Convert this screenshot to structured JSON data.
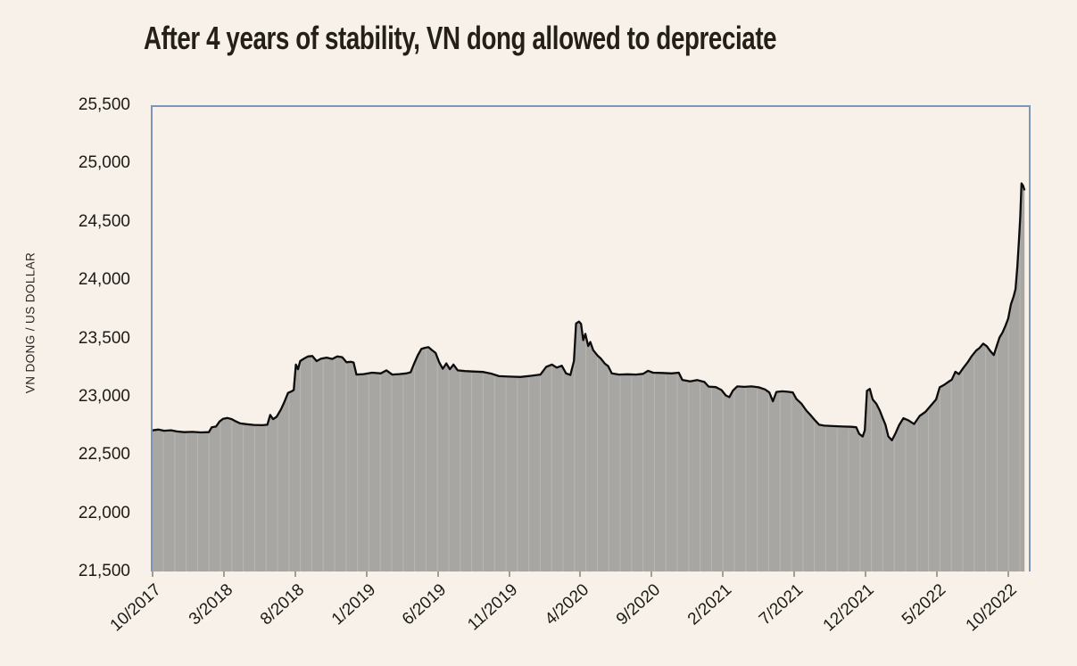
{
  "title": {
    "text": "After 4 years of stability, VN dong allowed to depreciate"
  },
  "y_axis": {
    "title": "VN DONG / US DOLLAR",
    "tick_labels": [
      "25,500",
      "25,000",
      "24,500",
      "24,000",
      "23,500",
      "23,000",
      "22,500",
      "22,000",
      "21,500"
    ]
  },
  "x_axis": {
    "tick_labels": [
      "10/2017",
      "3/2018",
      "8/2018",
      "1/2019",
      "6/2019",
      "11/2019",
      "4/2020",
      "9/2020",
      "2/2021",
      "7/2021",
      "12/2021",
      "5/2022",
      "10/2022"
    ]
  },
  "chart_data": {
    "type": "area",
    "title": "After 4 years of stability, VN dong allowed to depreciate",
    "ylabel": "VN DONG / US DOLLAR",
    "ylim": [
      21500,
      25500
    ],
    "y_tick_step": 500,
    "grid": "off",
    "legend": "none",
    "x_unit": "months since 10/2017",
    "x_domain_months": [
      0,
      61.45
    ],
    "x_tick_positions": [
      0,
      5,
      10,
      15,
      20,
      25,
      30,
      35,
      40,
      45,
      50,
      55,
      60
    ],
    "x_tick_labels": [
      "10/2017",
      "3/2018",
      "8/2018",
      "1/2019",
      "6/2019",
      "11/2019",
      "4/2020",
      "9/2020",
      "2/2021",
      "7/2021",
      "12/2021",
      "5/2022",
      "10/2022"
    ],
    "series": [
      {
        "name": "VN dong per US dollar",
        "points": [
          [
            0,
            22715
          ],
          [
            0.4,
            22722
          ],
          [
            0.8,
            22712
          ],
          [
            1.3,
            22716
          ],
          [
            1.7,
            22706
          ],
          [
            2.2,
            22700
          ],
          [
            2.8,
            22702
          ],
          [
            3.4,
            22698
          ],
          [
            3.95,
            22700
          ],
          [
            4.15,
            22742
          ],
          [
            4.45,
            22748
          ],
          [
            4.7,
            22792
          ],
          [
            4.95,
            22815
          ],
          [
            5.25,
            22822
          ],
          [
            5.55,
            22812
          ],
          [
            5.85,
            22792
          ],
          [
            6.15,
            22775
          ],
          [
            6.6,
            22768
          ],
          [
            7.1,
            22762
          ],
          [
            7.7,
            22760
          ],
          [
            8.05,
            22764
          ],
          [
            8.25,
            22848
          ],
          [
            8.45,
            22812
          ],
          [
            8.7,
            22832
          ],
          [
            9.0,
            22895
          ],
          [
            9.25,
            22962
          ],
          [
            9.5,
            23038
          ],
          [
            9.75,
            23052
          ],
          [
            9.9,
            23062
          ],
          [
            10.05,
            23282
          ],
          [
            10.2,
            23242
          ],
          [
            10.35,
            23312
          ],
          [
            10.6,
            23332
          ],
          [
            10.9,
            23352
          ],
          [
            11.2,
            23356
          ],
          [
            11.5,
            23312
          ],
          [
            11.8,
            23332
          ],
          [
            12.2,
            23342
          ],
          [
            12.6,
            23330
          ],
          [
            12.95,
            23352
          ],
          [
            13.3,
            23346
          ],
          [
            13.6,
            23302
          ],
          [
            13.9,
            23306
          ],
          [
            14.1,
            23300
          ],
          [
            14.3,
            23196
          ],
          [
            14.8,
            23200
          ],
          [
            15.4,
            23212
          ],
          [
            16.0,
            23206
          ],
          [
            16.4,
            23232
          ],
          [
            16.8,
            23196
          ],
          [
            17.3,
            23200
          ],
          [
            17.8,
            23206
          ],
          [
            18.1,
            23216
          ],
          [
            18.35,
            23292
          ],
          [
            18.6,
            23362
          ],
          [
            18.85,
            23416
          ],
          [
            19.1,
            23426
          ],
          [
            19.35,
            23432
          ],
          [
            19.6,
            23406
          ],
          [
            19.85,
            23382
          ],
          [
            20.1,
            23302
          ],
          [
            20.35,
            23246
          ],
          [
            20.6,
            23292
          ],
          [
            20.85,
            23242
          ],
          [
            21.1,
            23282
          ],
          [
            21.4,
            23232
          ],
          [
            21.9,
            23226
          ],
          [
            22.5,
            23222
          ],
          [
            23.2,
            23218
          ],
          [
            23.8,
            23202
          ],
          [
            24.3,
            23182
          ],
          [
            25.0,
            23178
          ],
          [
            25.8,
            23175
          ],
          [
            26.6,
            23186
          ],
          [
            27.2,
            23196
          ],
          [
            27.6,
            23262
          ],
          [
            28.0,
            23282
          ],
          [
            28.35,
            23256
          ],
          [
            28.7,
            23272
          ],
          [
            29.0,
            23206
          ],
          [
            29.3,
            23192
          ],
          [
            29.55,
            23312
          ],
          [
            29.7,
            23636
          ],
          [
            29.9,
            23652
          ],
          [
            30.05,
            23632
          ],
          [
            30.2,
            23492
          ],
          [
            30.35,
            23546
          ],
          [
            30.55,
            23442
          ],
          [
            30.7,
            23476
          ],
          [
            30.9,
            23406
          ],
          [
            31.2,
            23360
          ],
          [
            31.45,
            23332
          ],
          [
            31.7,
            23292
          ],
          [
            31.95,
            23268
          ],
          [
            32.2,
            23206
          ],
          [
            32.7,
            23196
          ],
          [
            33.3,
            23198
          ],
          [
            33.9,
            23196
          ],
          [
            34.4,
            23202
          ],
          [
            34.75,
            23228
          ],
          [
            35.1,
            23212
          ],
          [
            35.7,
            23210
          ],
          [
            36.4,
            23206
          ],
          [
            36.9,
            23212
          ],
          [
            37.15,
            23150
          ],
          [
            37.7,
            23138
          ],
          [
            38.2,
            23148
          ],
          [
            38.7,
            23132
          ],
          [
            39.0,
            23092
          ],
          [
            39.5,
            23088
          ],
          [
            39.9,
            23062
          ],
          [
            40.2,
            23016
          ],
          [
            40.45,
            23002
          ],
          [
            40.7,
            23058
          ],
          [
            41.0,
            23094
          ],
          [
            41.5,
            23090
          ],
          [
            42.0,
            23094
          ],
          [
            42.5,
            23086
          ],
          [
            42.95,
            23068
          ],
          [
            43.25,
            23042
          ],
          [
            43.5,
            22966
          ],
          [
            43.75,
            23046
          ],
          [
            44.15,
            23052
          ],
          [
            44.55,
            23048
          ],
          [
            44.9,
            23042
          ],
          [
            45.15,
            22986
          ],
          [
            45.5,
            22946
          ],
          [
            45.85,
            22886
          ],
          [
            46.15,
            22846
          ],
          [
            46.5,
            22796
          ],
          [
            46.75,
            22764
          ],
          [
            47.1,
            22756
          ],
          [
            47.7,
            22752
          ],
          [
            48.4,
            22748
          ],
          [
            49.0,
            22746
          ],
          [
            49.35,
            22742
          ],
          [
            49.55,
            22686
          ],
          [
            49.8,
            22662
          ],
          [
            49.95,
            22716
          ],
          [
            50.1,
            23056
          ],
          [
            50.3,
            23072
          ],
          [
            50.5,
            22982
          ],
          [
            50.75,
            22946
          ],
          [
            51.0,
            22886
          ],
          [
            51.2,
            22822
          ],
          [
            51.4,
            22762
          ],
          [
            51.6,
            22662
          ],
          [
            51.85,
            22630
          ],
          [
            52.1,
            22690
          ],
          [
            52.35,
            22760
          ],
          [
            52.65,
            22820
          ],
          [
            53.0,
            22802
          ],
          [
            53.4,
            22770
          ],
          [
            53.8,
            22840
          ],
          [
            54.2,
            22874
          ],
          [
            54.6,
            22932
          ],
          [
            54.95,
            22982
          ],
          [
            55.2,
            23086
          ],
          [
            55.5,
            23106
          ],
          [
            55.8,
            23132
          ],
          [
            56.05,
            23152
          ],
          [
            56.3,
            23220
          ],
          [
            56.55,
            23200
          ],
          [
            56.85,
            23252
          ],
          [
            57.15,
            23300
          ],
          [
            57.45,
            23356
          ],
          [
            57.75,
            23402
          ],
          [
            58.0,
            23426
          ],
          [
            58.25,
            23462
          ],
          [
            58.5,
            23440
          ],
          [
            58.75,
            23398
          ],
          [
            59.0,
            23364
          ],
          [
            59.2,
            23442
          ],
          [
            59.4,
            23516
          ],
          [
            59.6,
            23556
          ],
          [
            59.8,
            23612
          ],
          [
            60.0,
            23676
          ],
          [
            60.2,
            23802
          ],
          [
            60.38,
            23866
          ],
          [
            60.52,
            23932
          ],
          [
            60.64,
            24122
          ],
          [
            60.75,
            24332
          ],
          [
            60.85,
            24552
          ],
          [
            60.94,
            24842
          ],
          [
            61.05,
            24822
          ],
          [
            61.15,
            24782
          ]
        ]
      }
    ],
    "colors": {
      "area_fill": "#a8a6a3",
      "bar_separator": "#bdbab5",
      "top_line": "#0c0c0c",
      "plot_border": "#7c97b6",
      "background": "#f7f1e9",
      "text": "#1d1a16"
    }
  }
}
